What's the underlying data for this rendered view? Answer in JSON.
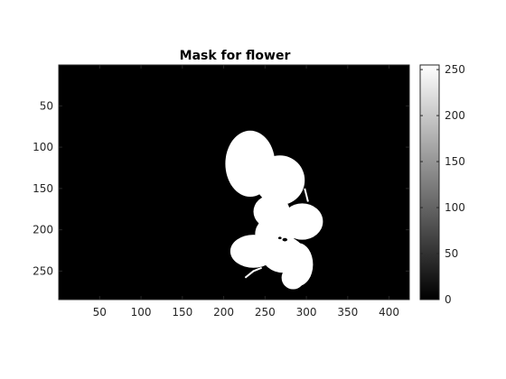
{
  "chart_data": {
    "type": "heatmap",
    "title": "Mask for flower",
    "image": {
      "x_range": [
        1,
        424
      ],
      "y_range": [
        1,
        284
      ],
      "description_value_background": 0,
      "description_value_mask": 255
    },
    "x_ticks": [
      50,
      100,
      150,
      200,
      250,
      300,
      350,
      400
    ],
    "y_ticks": [
      50,
      100,
      150,
      200,
      250
    ],
    "colorbar": {
      "colormap": "gray",
      "clim": [
        0,
        255
      ],
      "ticks": [
        0,
        50,
        100,
        150,
        200,
        250
      ]
    },
    "mask_blobs": [
      {
        "cx": 232,
        "cy": 120,
        "rx": 30,
        "ry": 40
      },
      {
        "cx": 268,
        "cy": 140,
        "rx": 30,
        "ry": 30
      },
      {
        "cx": 295,
        "cy": 190,
        "rx": 25,
        "ry": 22
      },
      {
        "cx": 262,
        "cy": 205,
        "rx": 24,
        "ry": 22
      },
      {
        "cx": 272,
        "cy": 230,
        "rx": 26,
        "ry": 22
      },
      {
        "cx": 290,
        "cy": 242,
        "rx": 18,
        "ry": 26
      },
      {
        "cx": 284,
        "cy": 258,
        "rx": 14,
        "ry": 14
      },
      {
        "cx": 236,
        "cy": 226,
        "rx": 28,
        "ry": 20
      },
      {
        "cx": 258,
        "cy": 178,
        "rx": 22,
        "ry": 20
      }
    ]
  }
}
